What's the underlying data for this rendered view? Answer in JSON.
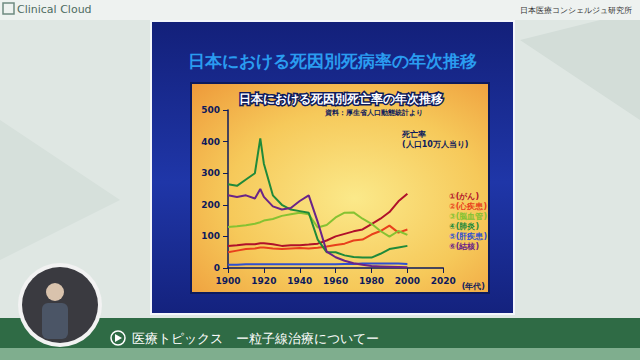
{
  "page": {
    "brand": "Clinical Cloud",
    "organization": "日本医療コンシェルジュ研究所",
    "slide_title": "日本における死因別死病率の年次推移",
    "footer": "医療トピックス",
    "footer_subtitle": "ー粒子線治療についてー"
  },
  "chart_data": {
    "type": "line",
    "title": "日本における死因別死亡率の年次推移",
    "subtitle": "資料：厚生省人口動態統計より",
    "y_label": "死亡率\n(人口10万人当り)",
    "x_label": "(年代)",
    "x": [
      1900,
      1905,
      1910,
      1915,
      1918,
      1920,
      1925,
      1930,
      1935,
      1940,
      1945,
      1950,
      1955,
      1960,
      1965,
      1970,
      1975,
      1980,
      1985,
      1990,
      1995,
      2000
    ],
    "series": [
      {
        "name": "①(がん)",
        "color": "#b0102a",
        "values": [
          70,
          72,
          75,
          75,
          78,
          78,
          75,
          70,
          72,
          72,
          74,
          77,
          87,
          100,
          108,
          116,
          122,
          139,
          156,
          177,
          211,
          235
        ]
      },
      {
        "name": "②(心疾患)",
        "color": "#e8401c",
        "values": [
          50,
          55,
          60,
          62,
          65,
          65,
          62,
          60,
          62,
          63,
          62,
          64,
          68,
          73,
          77,
          87,
          90,
          106,
          117,
          134,
          112,
          122
        ]
      },
      {
        "name": "③(脳血管)",
        "color": "#86c232",
        "values": [
          130,
          132,
          135,
          140,
          145,
          150,
          155,
          165,
          170,
          175,
          170,
          128,
          136,
          160,
          175,
          176,
          156,
          140,
          117,
          99,
          117,
          105
        ]
      },
      {
        "name": "④(肺炎)",
        "color": "#1f8a3a",
        "values": [
          265,
          260,
          280,
          300,
          410,
          330,
          230,
          200,
          185,
          180,
          175,
          90,
          50,
          50,
          40,
          35,
          33,
          33,
          45,
          60,
          65,
          70
        ]
      },
      {
        "name": "⑤(肝疾患)",
        "color": "#2f4fd0",
        "values": [
          10,
          10,
          12,
          12,
          12,
          12,
          12,
          12,
          12,
          12,
          12,
          12,
          12,
          12,
          13,
          13,
          14,
          14,
          14,
          14,
          14,
          13
        ]
      },
      {
        "name": "⑥(結核)",
        "color": "#6a2488",
        "values": [
          230,
          225,
          230,
          220,
          250,
          225,
          195,
          185,
          190,
          212,
          230,
          146,
          52,
          34,
          23,
          15,
          10,
          6,
          5,
          4,
          3,
          2
        ]
      }
    ],
    "xlim": [
      1900,
      2020
    ],
    "xticks": [
      1900,
      1920,
      1940,
      1960,
      1980,
      2000,
      2020
    ],
    "ylim": [
      0,
      500
    ],
    "yticks": [
      0,
      100,
      200,
      300,
      400,
      500
    ],
    "grid": false,
    "legend": "right"
  }
}
